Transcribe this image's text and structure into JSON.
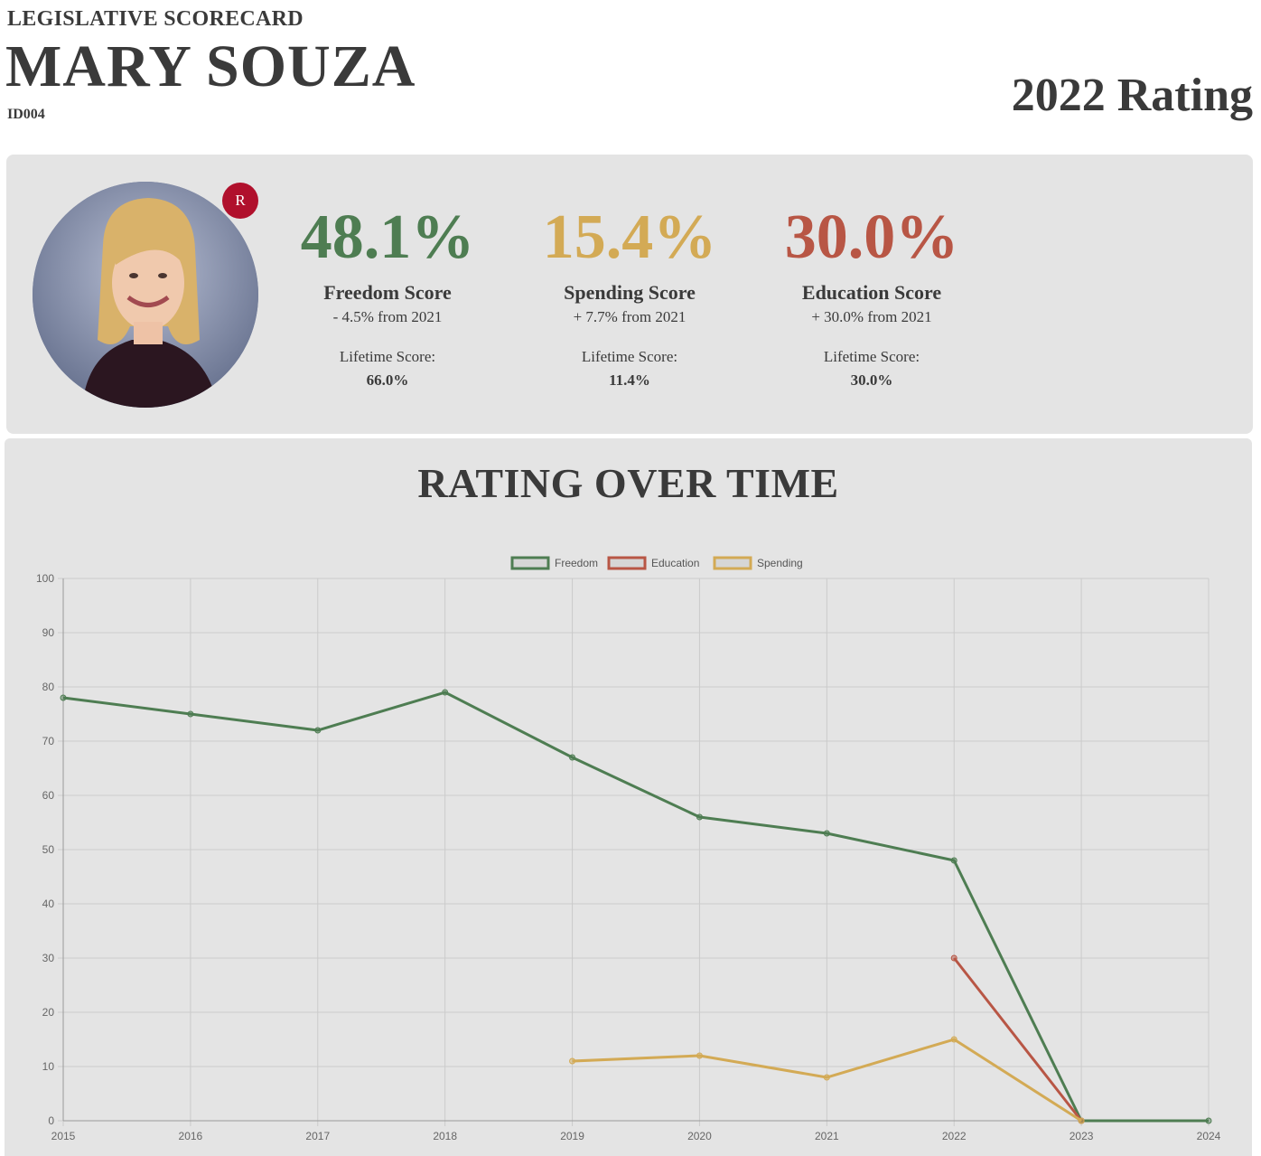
{
  "header": {
    "eyebrow": "LEGISLATIVE SCORECARD",
    "legislator_name": "MARY SOUZA",
    "district_code": "ID004",
    "rating_title": "2022 Rating"
  },
  "profile": {
    "party_badge": "R",
    "party_color": "#b0102c",
    "photo_icon": "legislator-portrait"
  },
  "scores": [
    {
      "key": "freedom",
      "value": "48.1%",
      "label": "Freedom Score",
      "change": "- 4.5% from 2021",
      "lifetime_label": "Lifetime Score:",
      "lifetime_value": "66.0%",
      "color": "#4e7d52"
    },
    {
      "key": "spending",
      "value": "15.4%",
      "label": "Spending Score",
      "change": "+ 7.7% from 2021",
      "lifetime_label": "Lifetime Score:",
      "lifetime_value": "11.4%",
      "color": "#d3aa55"
    },
    {
      "key": "education",
      "value": "30.0%",
      "label": "Education Score",
      "change": "+ 30.0% from 2021",
      "lifetime_label": "Lifetime Score:",
      "lifetime_value": "30.0%",
      "color": "#b85645"
    }
  ],
  "chart_section": {
    "heading": "RATING OVER TIME"
  },
  "chart_data": {
    "type": "line",
    "title": "",
    "categories": [
      "2015",
      "2016",
      "2017",
      "2018",
      "2019",
      "2020",
      "2021",
      "2022",
      "2023",
      "2024"
    ],
    "ylim": [
      0,
      100
    ],
    "yticks": [
      0,
      10,
      20,
      30,
      40,
      50,
      60,
      70,
      80,
      90,
      100
    ],
    "grid": true,
    "legend_position": "top-center",
    "series": [
      {
        "name": "Freedom",
        "color": "#4e7d52",
        "values": [
          78,
          75,
          72,
          79,
          67,
          56,
          53,
          48,
          0,
          0
        ]
      },
      {
        "name": "Education",
        "color": "#b85645",
        "values": [
          null,
          null,
          null,
          null,
          null,
          null,
          null,
          30,
          0,
          null
        ]
      },
      {
        "name": "Spending",
        "color": "#d3aa55",
        "values": [
          null,
          null,
          null,
          null,
          11,
          12,
          8,
          15,
          0,
          null
        ]
      }
    ]
  }
}
